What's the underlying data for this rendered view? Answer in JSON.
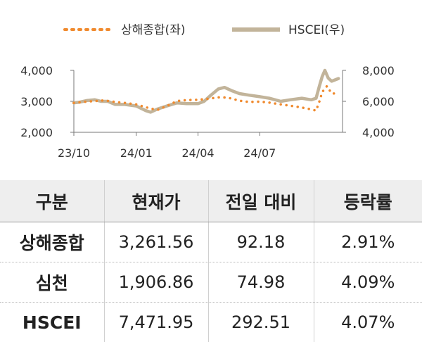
{
  "chart_data": {
    "type": "line",
    "legend_position": "top",
    "grid": false,
    "x_ticks": [
      "23/10",
      "24/01",
      "24/04",
      "24/07"
    ],
    "left_axis": {
      "ticks": [
        "4,000",
        "3,000",
        "2,000"
      ],
      "ylim": [
        2000,
        4000
      ]
    },
    "right_axis": {
      "ticks": [
        "8,000",
        "6,000",
        "4,000"
      ],
      "ylim": [
        4000,
        8000
      ]
    },
    "x_range": [
      "2023-10",
      "2024-10"
    ],
    "series": [
      {
        "name": "상해종합(좌)",
        "axis": "left",
        "style": "dotted",
        "color": "#F08A2E",
        "points": [
          [
            "2023-10",
            2950
          ],
          [
            "2023-10-20",
            2990
          ],
          [
            "2023-11",
            3010
          ],
          [
            "2023-11-15",
            3030
          ],
          [
            "2023-12",
            2980
          ],
          [
            "2023-12-15",
            2950
          ],
          [
            "2024-01",
            2900
          ],
          [
            "2024-01-20",
            2780
          ],
          [
            "2024-02",
            2720
          ],
          [
            "2024-02-15",
            2850
          ],
          [
            "2024-03",
            3010
          ],
          [
            "2024-03-15",
            3040
          ],
          [
            "2024-04",
            3050
          ],
          [
            "2024-04-15",
            3080
          ],
          [
            "2024-05",
            3130
          ],
          [
            "2024-05-15",
            3120
          ],
          [
            "2024-06",
            3020
          ],
          [
            "2024-06-15",
            2980
          ],
          [
            "2024-07",
            2990
          ],
          [
            "2024-07-15",
            2960
          ],
          [
            "2024-08",
            2900
          ],
          [
            "2024-08-15",
            2860
          ],
          [
            "2024-09",
            2800
          ],
          [
            "2024-09-15",
            2740
          ],
          [
            "2024-09-22",
            2700
          ],
          [
            "2024-09-27",
            3000
          ],
          [
            "2024-10-01",
            3300
          ],
          [
            "2024-10-08",
            3490
          ],
          [
            "2024-10-15",
            3250
          ],
          [
            "2024-10-25",
            3262
          ]
        ]
      },
      {
        "name": "HSCEI(우)",
        "axis": "right",
        "style": "solid",
        "color": "#C2B49A",
        "points": [
          [
            "2023-10",
            5900
          ],
          [
            "2023-10-10",
            5950
          ],
          [
            "2023-10-20",
            6050
          ],
          [
            "2023-11",
            6100
          ],
          [
            "2023-11-10",
            6000
          ],
          [
            "2023-11-20",
            6000
          ],
          [
            "2023-12",
            5800
          ],
          [
            "2023-12-15",
            5800
          ],
          [
            "2024-01",
            5700
          ],
          [
            "2024-01-15",
            5400
          ],
          [
            "2024-01-22",
            5300
          ],
          [
            "2024-02",
            5500
          ],
          [
            "2024-02-15",
            5700
          ],
          [
            "2024-03",
            5900
          ],
          [
            "2024-03-15",
            5850
          ],
          [
            "2024-04",
            5850
          ],
          [
            "2024-04-10",
            6000
          ],
          [
            "2024-04-20",
            6400
          ],
          [
            "2024-05",
            6800
          ],
          [
            "2024-05-10",
            6900
          ],
          [
            "2024-05-20",
            6700
          ],
          [
            "2024-06",
            6500
          ],
          [
            "2024-06-15",
            6400
          ],
          [
            "2024-07",
            6300
          ],
          [
            "2024-07-15",
            6200
          ],
          [
            "2024-08",
            6000
          ],
          [
            "2024-08-15",
            6100
          ],
          [
            "2024-09",
            6200
          ],
          [
            "2024-09-15",
            6100
          ],
          [
            "2024-09-22",
            6200
          ],
          [
            "2024-09-27",
            7000
          ],
          [
            "2024-10-01",
            7600
          ],
          [
            "2024-10-05",
            8000
          ],
          [
            "2024-10-10",
            7500
          ],
          [
            "2024-10-15",
            7300
          ],
          [
            "2024-10-25",
            7472
          ]
        ]
      }
    ]
  },
  "table": {
    "headers": [
      "구분",
      "현재가",
      "전일 대비",
      "등락률"
    ],
    "rows": [
      [
        "상해종합",
        "3,261.56",
        "92.18",
        "2.91%"
      ],
      [
        "심천",
        "1,906.86",
        "74.98",
        "4.09%"
      ],
      [
        "HSCEI",
        "7,471.95",
        "292.51",
        "4.07%"
      ]
    ]
  }
}
